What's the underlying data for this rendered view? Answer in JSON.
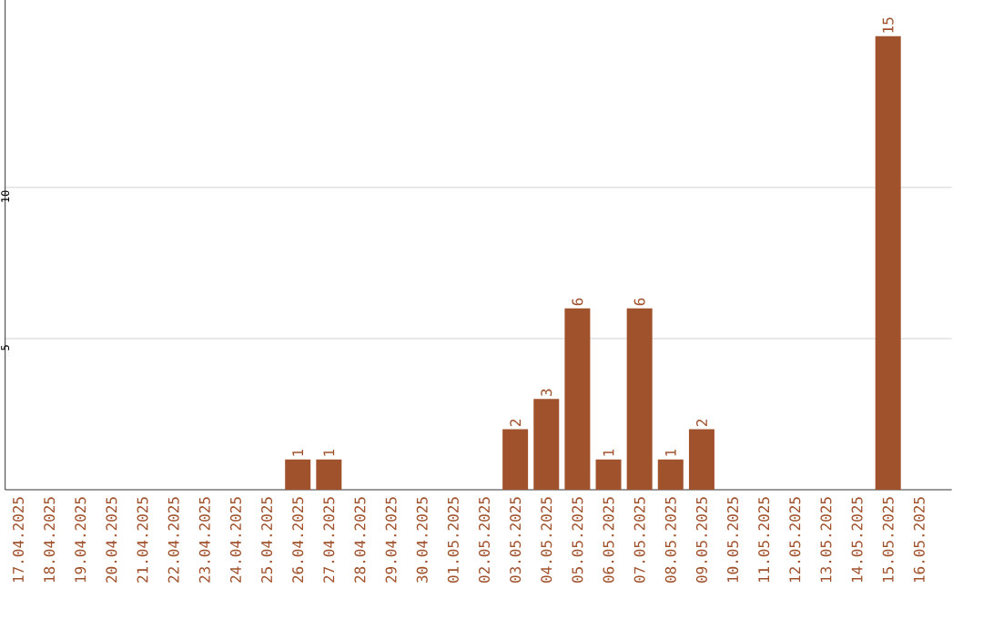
{
  "chart_data": {
    "type": "bar",
    "categories": [
      "17.04.2025",
      "18.04.2025",
      "19.04.2025",
      "20.04.2025",
      "21.04.2025",
      "22.04.2025",
      "23.04.2025",
      "24.04.2025",
      "25.04.2025",
      "26.04.2025",
      "27.04.2025",
      "28.04.2025",
      "29.04.2025",
      "30.04.2025",
      "01.05.2025",
      "02.05.2025",
      "03.05.2025",
      "04.05.2025",
      "05.05.2025",
      "06.05.2025",
      "07.05.2025",
      "08.05.2025",
      "09.05.2025",
      "10.05.2025",
      "11.05.2025",
      "12.05.2025",
      "13.05.2025",
      "14.05.2025",
      "15.05.2025",
      "16.05.2025"
    ],
    "values": [
      0,
      0,
      0,
      0,
      0,
      0,
      0,
      0,
      0,
      1,
      1,
      0,
      0,
      0,
      0,
      0,
      2,
      3,
      6,
      1,
      6,
      1,
      2,
      0,
      0,
      0,
      0,
      0,
      15,
      0
    ],
    "value_labels": [
      null,
      null,
      null,
      null,
      null,
      null,
      null,
      null,
      null,
      "1",
      "1",
      null,
      null,
      null,
      null,
      null,
      "2",
      "3",
      "6",
      "1",
      "6",
      "1",
      "2",
      null,
      null,
      null,
      null,
      null,
      "15",
      null
    ],
    "color": "#a0522d",
    "ylim": [
      0,
      16.2
    ],
    "yticks": [
      5,
      10
    ],
    "grid": "y"
  }
}
